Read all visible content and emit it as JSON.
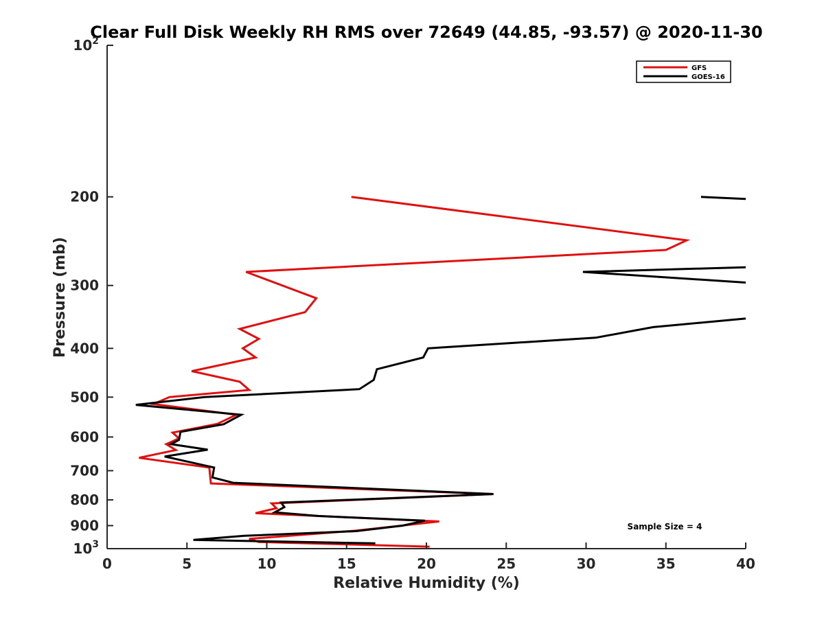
{
  "chart_data": {
    "type": "line",
    "title": "Clear Full Disk Weekly RH RMS over 72649 (44.85, -93.57) @ 2020-11-30",
    "xlabel": "Relative Humidity (%)",
    "ylabel": "Pressure (mb)",
    "xlim": [
      0,
      40
    ],
    "ylim": [
      100,
      1000
    ],
    "y_scale": "log",
    "y_reversed": true,
    "grid": false,
    "legend_position": "top-right",
    "x_ticks": [
      {
        "value": 0,
        "label": "0"
      },
      {
        "value": 5,
        "label": "5"
      },
      {
        "value": 10,
        "label": "10"
      },
      {
        "value": 15,
        "label": "15"
      },
      {
        "value": 20,
        "label": "20"
      },
      {
        "value": 25,
        "label": "25"
      },
      {
        "value": 30,
        "label": "30"
      },
      {
        "value": 35,
        "label": "35"
      },
      {
        "value": 40,
        "label": "40"
      }
    ],
    "y_ticks": [
      {
        "value": 100,
        "base": "10",
        "exp": "2"
      },
      {
        "value": 200,
        "base": "200",
        "exp": ""
      },
      {
        "value": 300,
        "base": "300",
        "exp": ""
      },
      {
        "value": 400,
        "base": "400",
        "exp": ""
      },
      {
        "value": 500,
        "base": "500",
        "exp": ""
      },
      {
        "value": 600,
        "base": "600",
        "exp": ""
      },
      {
        "value": 700,
        "base": "700",
        "exp": ""
      },
      {
        "value": 800,
        "base": "800",
        "exp": ""
      },
      {
        "value": 900,
        "base": "900",
        "exp": ""
      },
      {
        "value": 1000,
        "base": "10",
        "exp": "3"
      }
    ],
    "series": [
      {
        "name": "GFS",
        "color": "#e01010",
        "points": [
          {
            "x": 15.3,
            "y": 200
          },
          {
            "x": 36.3,
            "y": 244
          },
          {
            "x": 35.0,
            "y": 255
          },
          {
            "x": 8.7,
            "y": 282
          },
          {
            "x": 13.1,
            "y": 318
          },
          {
            "x": 12.4,
            "y": 339
          },
          {
            "x": 8.3,
            "y": 366
          },
          {
            "x": 9.5,
            "y": 383
          },
          {
            "x": 8.5,
            "y": 400
          },
          {
            "x": 9.3,
            "y": 417
          },
          {
            "x": 5.3,
            "y": 444
          },
          {
            "x": 8.3,
            "y": 466
          },
          {
            "x": 8.9,
            "y": 484
          },
          {
            "x": 3.9,
            "y": 500
          },
          {
            "x": 2.9,
            "y": 516
          },
          {
            "x": 8.1,
            "y": 542
          },
          {
            "x": 6.9,
            "y": 565
          },
          {
            "x": 4.1,
            "y": 588
          },
          {
            "x": 4.5,
            "y": 604
          },
          {
            "x": 3.7,
            "y": 620
          },
          {
            "x": 4.3,
            "y": 637
          },
          {
            "x": 2.0,
            "y": 660
          },
          {
            "x": 6.4,
            "y": 690
          },
          {
            "x": 6.5,
            "y": 742
          },
          {
            "x": 24.2,
            "y": 779
          },
          {
            "x": 10.3,
            "y": 813
          },
          {
            "x": 10.6,
            "y": 831
          },
          {
            "x": 9.3,
            "y": 850
          },
          {
            "x": 20.8,
            "y": 883
          },
          {
            "x": 15.6,
            "y": 921
          },
          {
            "x": 8.9,
            "y": 956
          },
          {
            "x": 9.5,
            "y": 970
          },
          {
            "x": 20.2,
            "y": 991
          }
        ]
      },
      {
        "name": "GOES-16",
        "color": "#000000",
        "segments": [
          [
            {
              "x": 37.2,
              "y": 200
            },
            {
              "x": 40.0,
              "y": 202
            }
          ],
          [
            {
              "x": 40.0,
              "y": 276
            },
            {
              "x": 29.8,
              "y": 282
            },
            {
              "x": 40.0,
              "y": 296
            }
          ],
          [
            {
              "x": 40.0,
              "y": 349
            },
            {
              "x": 34.2,
              "y": 363
            },
            {
              "x": 30.6,
              "y": 381
            },
            {
              "x": 20.1,
              "y": 400
            },
            {
              "x": 19.8,
              "y": 417
            },
            {
              "x": 16.9,
              "y": 440
            },
            {
              "x": 16.7,
              "y": 462
            },
            {
              "x": 15.8,
              "y": 482
            },
            {
              "x": 6.1,
              "y": 500
            },
            {
              "x": 1.8,
              "y": 518
            },
            {
              "x": 8.4,
              "y": 542
            },
            {
              "x": 7.3,
              "y": 566
            },
            {
              "x": 4.6,
              "y": 586
            },
            {
              "x": 4.5,
              "y": 608
            },
            {
              "x": 4.0,
              "y": 620
            },
            {
              "x": 6.3,
              "y": 636
            },
            {
              "x": 3.6,
              "y": 656
            },
            {
              "x": 6.7,
              "y": 690
            },
            {
              "x": 6.6,
              "y": 722
            },
            {
              "x": 7.9,
              "y": 740
            },
            {
              "x": 24.2,
              "y": 779
            },
            {
              "x": 10.9,
              "y": 810
            },
            {
              "x": 11.1,
              "y": 827
            },
            {
              "x": 10.5,
              "y": 847
            },
            {
              "x": 13.2,
              "y": 861
            },
            {
              "x": 19.9,
              "y": 880
            },
            {
              "x": 18.5,
              "y": 900
            },
            {
              "x": 15.6,
              "y": 923
            },
            {
              "x": 8.6,
              "y": 943
            },
            {
              "x": 5.4,
              "y": 961
            },
            {
              "x": 16.8,
              "y": 976
            }
          ]
        ]
      }
    ],
    "annotations": [
      {
        "text": "Sample Size = 4"
      }
    ]
  }
}
